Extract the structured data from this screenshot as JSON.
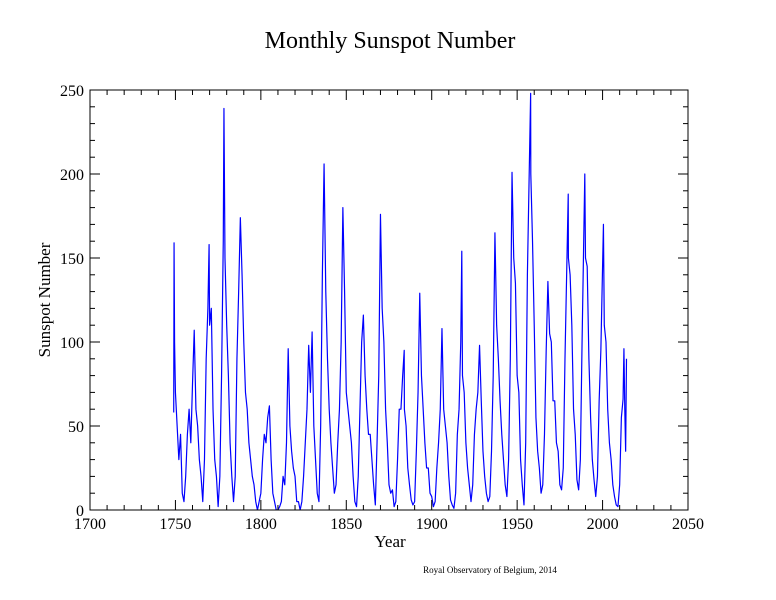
{
  "chart_data": {
    "type": "line",
    "title": "Monthly Sunspot Number",
    "x_label": "Year",
    "y_label": "Sunspot Number",
    "note": "Royal Observatory of Belgium, 2014",
    "xlim": [
      1700,
      2050
    ],
    "xticks": [
      1700,
      1750,
      1800,
      1850,
      1900,
      1950,
      2000,
      2050
    ],
    "ylim": [
      0,
      250
    ],
    "yticks": [
      0,
      50,
      100,
      150,
      200,
      250
    ],
    "series": [
      {
        "name": "Monthly Sunspot Number",
        "color": "#0000ff",
        "x": [
          1749.0,
          1749.2,
          1749.5,
          1750,
          1751,
          1752,
          1753,
          1754,
          1755,
          1756,
          1757,
          1758,
          1759,
          1760,
          1761,
          1762,
          1763,
          1764,
          1765,
          1766,
          1767,
          1768,
          1769,
          1769.7,
          1770,
          1771,
          1772,
          1773,
          1774,
          1775,
          1776,
          1777,
          1778,
          1778.4,
          1779,
          1780,
          1781,
          1782,
          1783,
          1784,
          1785,
          1786,
          1787,
          1788,
          1789,
          1790,
          1791,
          1792,
          1793,
          1794,
          1795,
          1796,
          1797,
          1798,
          1799,
          1800,
          1801,
          1802,
          1803,
          1804,
          1805,
          1806,
          1807,
          1808,
          1809,
          1810,
          1811,
          1812,
          1813,
          1814,
          1815,
          1816,
          1817,
          1818,
          1819,
          1820,
          1821,
          1822,
          1823,
          1824,
          1825,
          1826,
          1827,
          1828,
          1829,
          1830,
          1831,
          1832,
          1833,
          1834,
          1835,
          1836,
          1837,
          1838,
          1839,
          1840,
          1841,
          1842,
          1843,
          1844,
          1845,
          1846,
          1847,
          1848,
          1849,
          1850,
          1851,
          1852,
          1853,
          1854,
          1855,
          1856,
          1857,
          1858,
          1859,
          1860,
          1861,
          1862,
          1863,
          1864,
          1865,
          1866,
          1867,
          1868,
          1869,
          1870,
          1871,
          1872,
          1873,
          1874,
          1875,
          1876,
          1877,
          1878,
          1879,
          1880,
          1881,
          1882,
          1883,
          1883.9,
          1884,
          1885,
          1886,
          1887,
          1888,
          1889,
          1890,
          1891,
          1892,
          1893,
          1894,
          1895,
          1896,
          1897,
          1898,
          1899,
          1900,
          1901,
          1902,
          1903,
          1904,
          1905,
          1906,
          1907,
          1908,
          1909,
          1910,
          1911,
          1912,
          1913,
          1914,
          1915,
          1916,
          1917,
          1917.6,
          1918,
          1919,
          1920,
          1921,
          1922,
          1923,
          1924,
          1925,
          1926,
          1927,
          1928,
          1929,
          1930,
          1931,
          1932,
          1933,
          1934,
          1935,
          1936,
          1937,
          1938,
          1939,
          1940,
          1941,
          1942,
          1943,
          1944,
          1945,
          1946,
          1947,
          1948,
          1949,
          1950,
          1951,
          1952,
          1953,
          1954,
          1955,
          1956,
          1957.9,
          1958,
          1959,
          1960,
          1961,
          1962,
          1963,
          1964,
          1965,
          1966,
          1967,
          1968,
          1969,
          1970,
          1971,
          1972,
          1973,
          1974,
          1975,
          1976,
          1977,
          1978,
          1979.9,
          1980,
          1981,
          1982,
          1983,
          1984,
          1985,
          1986,
          1987,
          1988,
          1989.6,
          1990,
          1991,
          1992,
          1993,
          1994,
          1995,
          1996,
          1997,
          1998,
          1999,
          2000.5,
          2001,
          2002,
          2003,
          2004,
          2005,
          2006,
          2007,
          2008,
          2009,
          2010,
          2011,
          2012,
          2012.5,
          2013,
          2013.5,
          2014
        ],
        "values": [
          58,
          159,
          100,
          70,
          50,
          30,
          45,
          10,
          5,
          20,
          45,
          60,
          40,
          75,
          107,
          60,
          50,
          30,
          20,
          5,
          30,
          90,
          120,
          158,
          110,
          120,
          60,
          30,
          20,
          2,
          20,
          80,
          160,
          239,
          150,
          110,
          80,
          40,
          20,
          5,
          20,
          90,
          130,
          174,
          140,
          100,
          70,
          60,
          40,
          30,
          20,
          15,
          5,
          0,
          5,
          10,
          30,
          45,
          40,
          55,
          62,
          30,
          10,
          5,
          0,
          0,
          2,
          5,
          20,
          15,
          40,
          96,
          50,
          35,
          25,
          20,
          5,
          5,
          0,
          5,
          20,
          40,
          60,
          98,
          70,
          106,
          50,
          30,
          10,
          5,
          50,
          140,
          206,
          130,
          90,
          60,
          40,
          25,
          10,
          15,
          40,
          60,
          100,
          180,
          130,
          70,
          60,
          50,
          40,
          20,
          5,
          2,
          20,
          60,
          100,
          116,
          80,
          60,
          45,
          45,
          30,
          15,
          3,
          40,
          80,
          176,
          120,
          100,
          60,
          40,
          15,
          10,
          12,
          2,
          5,
          30,
          60,
          60,
          80,
          95,
          60,
          50,
          25,
          15,
          6,
          3,
          5,
          35,
          70,
          129,
          80,
          60,
          40,
          25,
          25,
          10,
          8,
          2,
          5,
          25,
          40,
          60,
          108,
          60,
          50,
          40,
          20,
          6,
          3,
          1,
          10,
          45,
          60,
          100,
          154,
          80,
          70,
          40,
          25,
          15,
          5,
          15,
          45,
          60,
          70,
          98,
          65,
          35,
          20,
          10,
          5,
          8,
          35,
          80,
          165,
          110,
          90,
          65,
          45,
          30,
          15,
          8,
          30,
          90,
          201,
          150,
          135,
          80,
          70,
          30,
          15,
          3,
          40,
          140,
          248,
          200,
          160,
          110,
          55,
          35,
          25,
          10,
          15,
          45,
          95,
          136,
          105,
          100,
          65,
          65,
          40,
          35,
          15,
          12,
          25,
          90,
          188,
          150,
          140,
          110,
          60,
          45,
          18,
          12,
          30,
          100,
          200,
          150,
          145,
          90,
          55,
          30,
          18,
          8,
          20,
          65,
          95,
          170,
          110,
          100,
          60,
          40,
          30,
          15,
          8,
          3,
          2,
          15,
          55,
          66,
          96,
          60,
          35,
          90
        ]
      }
    ]
  }
}
